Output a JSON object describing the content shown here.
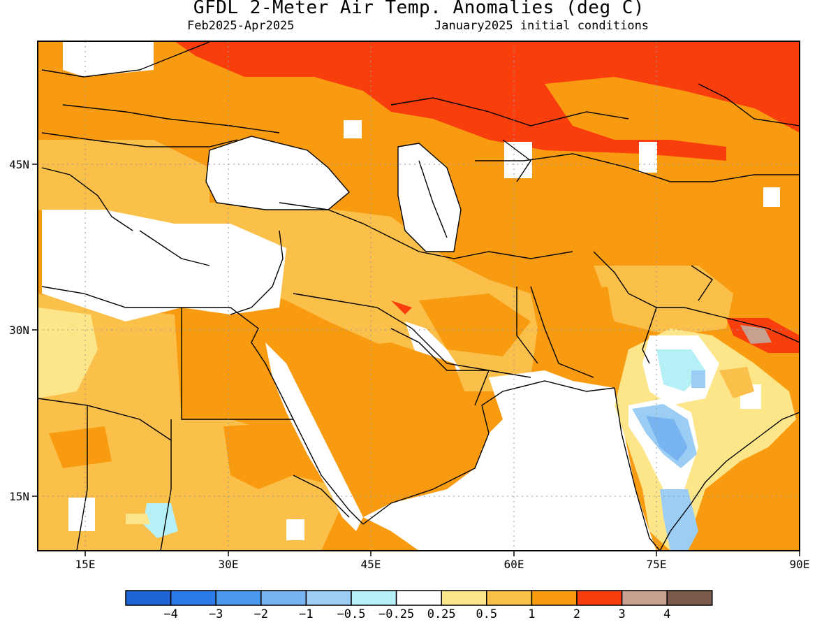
{
  "title": "GFDL 2-Meter Air Temp. Anomalies (deg C)",
  "subtitle_left": "Feb2025-Apr2025",
  "subtitle_right": "January2025 initial conditions",
  "map": {
    "lon_range": [
      10,
      90
    ],
    "lat_range": [
      10,
      56
    ],
    "x_ticks": [
      "15E",
      "30E",
      "45E",
      "60E",
      "75E",
      "90E"
    ],
    "y_ticks": [
      "45N",
      "30N",
      "15N"
    ],
    "grid": "dotted"
  },
  "legend": {
    "labels": [
      "-4",
      "-3",
      "-2",
      "-1",
      "-0.5",
      "-0.25",
      "0.25",
      "0.5",
      "1",
      "2",
      "3",
      "4"
    ],
    "colors": [
      "#1e64d2",
      "#2b7ce8",
      "#4a98ef",
      "#78b4f2",
      "#9ccef5",
      "#b4f0f5",
      "#ffffff",
      "#fde68a",
      "#fbc04a",
      "#f99b10",
      "#f93e0e",
      "#c8a090",
      "#7a5a4a"
    ]
  }
}
